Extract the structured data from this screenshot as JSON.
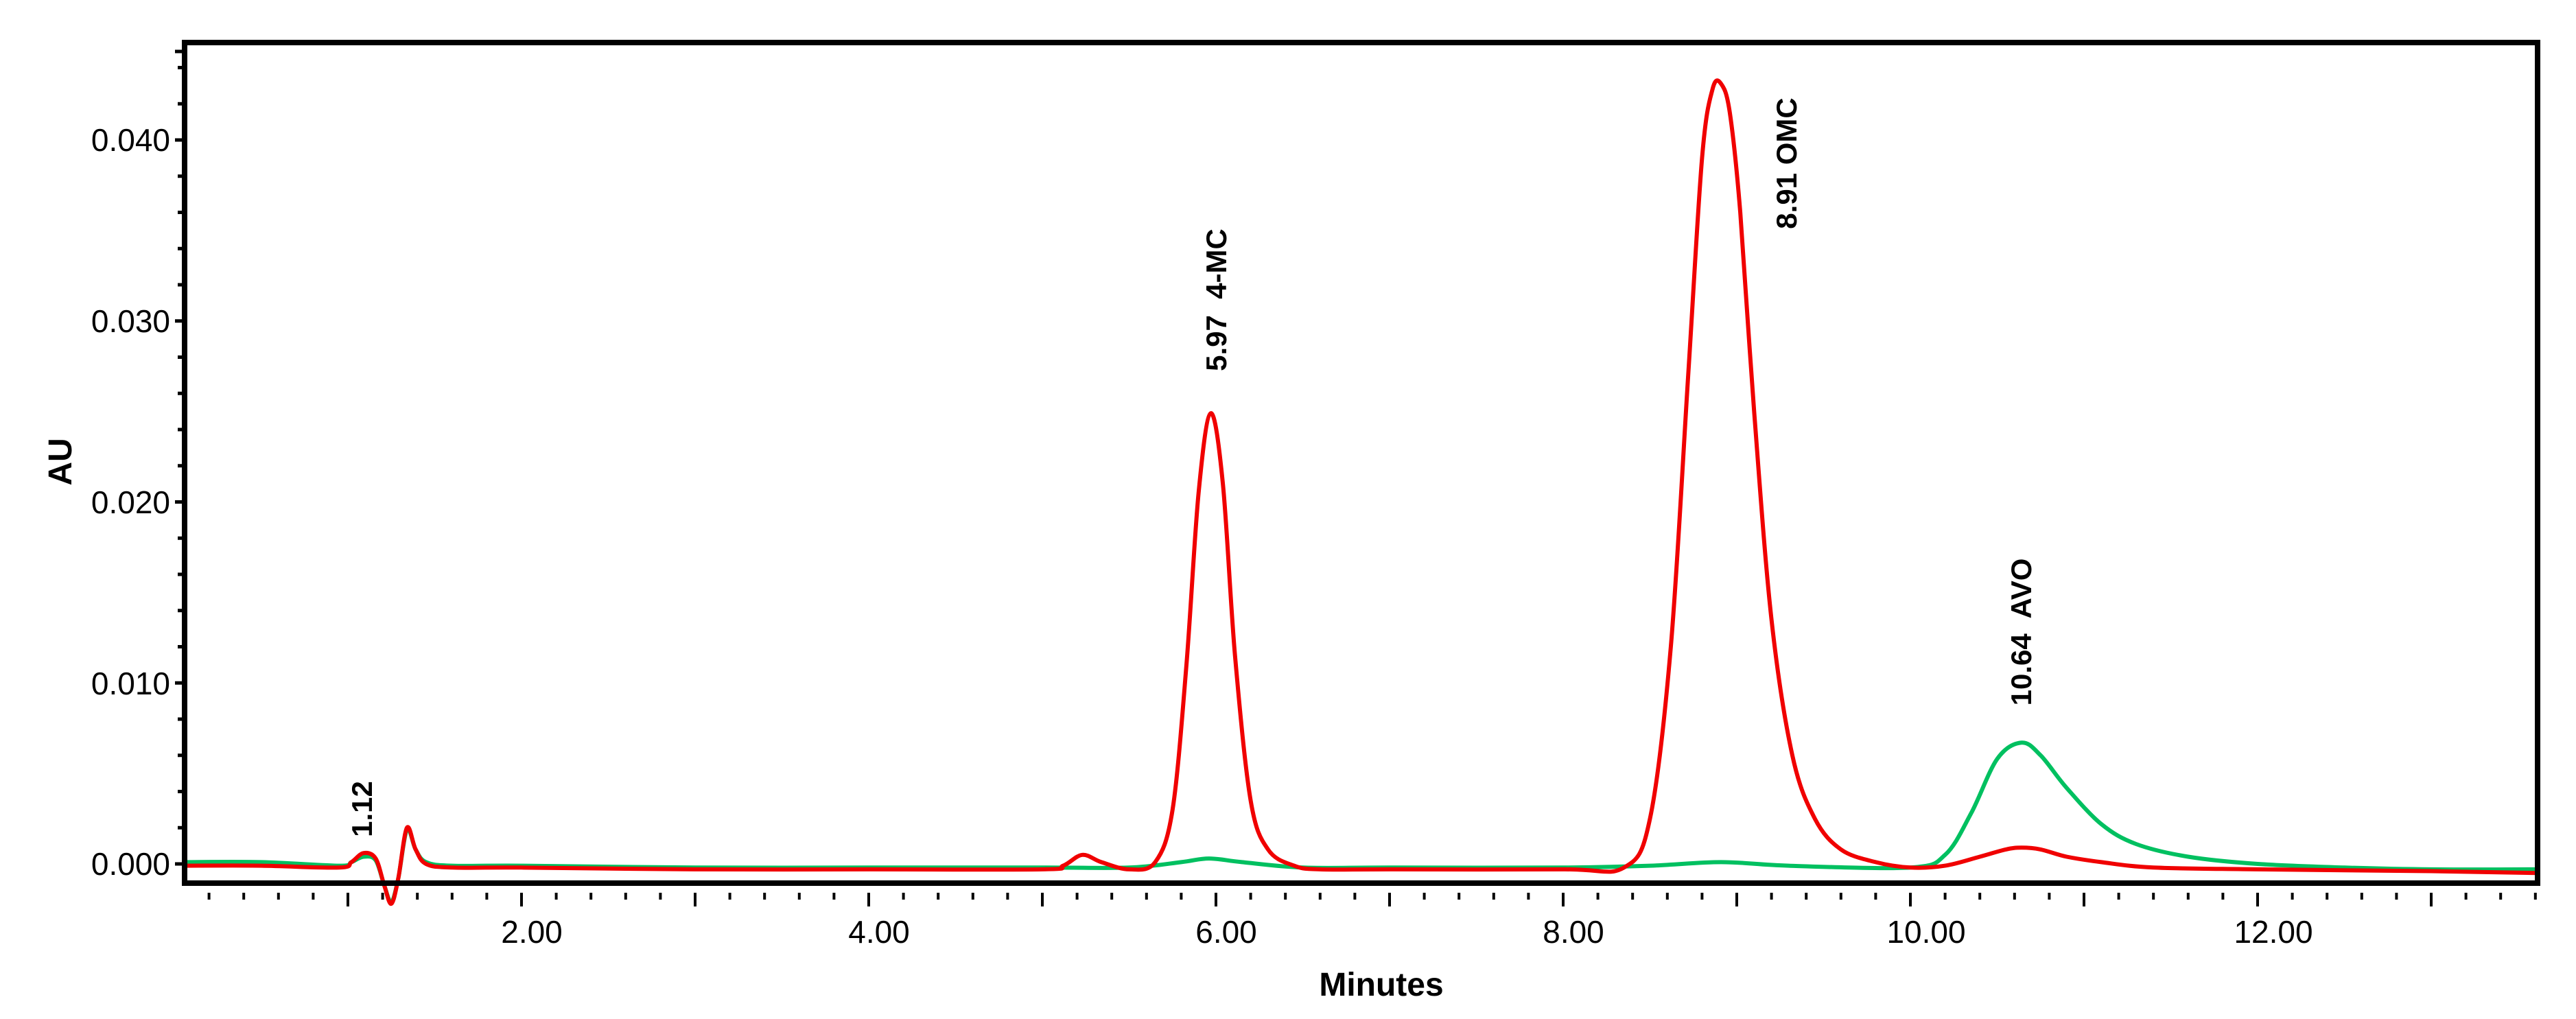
{
  "chart_data": {
    "type": "line",
    "title": "",
    "xlabel": "Minutes",
    "ylabel": "AU",
    "xlim": [
      0.06,
      13.61
    ],
    "ylim": [
      -0.0011,
      0.0448
    ],
    "grid": false,
    "legend": null,
    "x_ticks": [
      "2.00",
      "4.00",
      "6.00",
      "8.00",
      "10.00",
      "12.00"
    ],
    "x_tick_values": [
      2,
      4,
      6,
      8,
      10,
      12
    ],
    "y_ticks": [
      "0.000",
      "0.010",
      "0.020",
      "0.030",
      "0.040"
    ],
    "y_tick_values": [
      0,
      0.01,
      0.02,
      0.03,
      0.04
    ],
    "series": [
      {
        "name": "red trace",
        "color": "#f00000",
        "x": [
          0.06,
          0.5,
          0.95,
          1.02,
          1.09,
          1.16,
          1.21,
          1.25,
          1.29,
          1.34,
          1.39,
          1.45,
          1.6,
          2.0,
          3.0,
          4.0,
          5.0,
          5.12,
          5.23,
          5.34,
          5.5,
          5.65,
          5.75,
          5.83,
          5.9,
          5.97,
          6.04,
          6.11,
          6.2,
          6.3,
          6.45,
          6.6,
          7.0,
          8.0,
          8.35,
          8.5,
          8.62,
          8.72,
          8.8,
          8.86,
          8.91,
          8.96,
          9.02,
          9.1,
          9.2,
          9.32,
          9.45,
          9.6,
          9.8,
          10.0,
          10.2,
          10.4,
          10.55,
          10.64,
          10.75,
          10.9,
          11.1,
          11.4,
          12.0,
          13.0,
          13.61
        ],
        "y": [
          -0.0001,
          -0.0001,
          -0.0002,
          0.0001,
          0.0006,
          0.0003,
          -0.0012,
          -0.0022,
          -0.0008,
          0.002,
          0.0008,
          0.0,
          -0.0002,
          -0.0002,
          -0.0003,
          -0.0003,
          -0.0003,
          -0.0001,
          0.0005,
          0.0001,
          -0.0003,
          0.0001,
          0.003,
          0.011,
          0.0205,
          0.0249,
          0.021,
          0.0115,
          0.0035,
          0.0008,
          -0.0001,
          -0.0003,
          -0.0003,
          -0.0003,
          -0.0002,
          0.0025,
          0.012,
          0.027,
          0.039,
          0.0428,
          0.0431,
          0.0415,
          0.036,
          0.025,
          0.0135,
          0.006,
          0.0025,
          0.0008,
          0.0001,
          -0.0002,
          -0.0001,
          0.0004,
          0.0008,
          0.0009,
          0.0008,
          0.0004,
          0.0001,
          -0.0002,
          -0.0003,
          -0.0004,
          -0.0005
        ]
      },
      {
        "name": "green trace",
        "color": "#00c060",
        "x": [
          0.06,
          0.5,
          0.95,
          1.02,
          1.09,
          1.16,
          1.21,
          1.25,
          1.29,
          1.34,
          1.39,
          1.45,
          1.6,
          2.0,
          3.0,
          4.0,
          5.0,
          5.5,
          5.8,
          5.96,
          6.15,
          6.5,
          7.0,
          8.0,
          8.5,
          8.91,
          9.3,
          10.0,
          10.2,
          10.35,
          10.5,
          10.64,
          10.75,
          10.9,
          11.1,
          11.3,
          11.6,
          12.0,
          12.5,
          13.0,
          13.61
        ],
        "y": [
          0.0001,
          0.0001,
          -0.0001,
          0.0001,
          0.0004,
          0.0002,
          -0.0012,
          -0.0021,
          -0.0008,
          0.0019,
          0.0008,
          0.0001,
          -0.0001,
          -0.0001,
          -0.0002,
          -0.0002,
          -0.0002,
          -0.0002,
          0.0001,
          0.0003,
          0.0001,
          -0.0002,
          -0.0002,
          -0.0002,
          -0.0001,
          0.0001,
          -0.0001,
          -0.0002,
          0.0005,
          0.0028,
          0.0058,
          0.0067,
          0.006,
          0.0042,
          0.0022,
          0.0011,
          0.0004,
          0.0,
          -0.0002,
          -0.0003,
          -0.0003
        ]
      }
    ],
    "annotations": [
      {
        "text": "1.12",
        "x": 1.12
      },
      {
        "text": "5.97  4-MC",
        "x": 5.97
      },
      {
        "text": "8.91 OMC",
        "x": 8.91
      },
      {
        "text": "10.64  AVO",
        "x": 10.64
      }
    ]
  },
  "axes": {
    "xlabel": "Minutes",
    "ylabel": "AU",
    "x_ticks": [
      "2.00",
      "4.00",
      "6.00",
      "8.00",
      "10.00",
      "12.00"
    ],
    "y_ticks": [
      "0.000",
      "0.010",
      "0.020",
      "0.030",
      "0.040"
    ]
  },
  "peaks": {
    "p1": "1.12",
    "p2": "5.97  4-MC",
    "p3": "8.91 OMC",
    "p4": "10.64  AVO"
  },
  "colors": {
    "red": "#f00000",
    "green": "#00c060",
    "axis": "#000000"
  }
}
